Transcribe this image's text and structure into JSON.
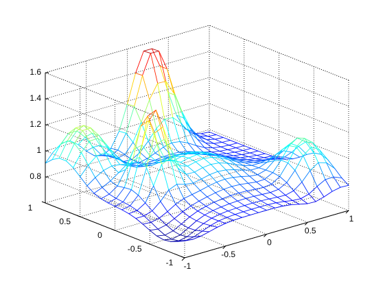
{
  "chart_data": {
    "type": "surface",
    "title": "",
    "xlabel": "",
    "ylabel": "",
    "zlabel": "",
    "colormap": "jet",
    "render": "mesh",
    "grid": true,
    "box": "partial",
    "xlim": [
      -1,
      1
    ],
    "ylim": [
      -1,
      1
    ],
    "zlim": [
      0.6,
      1.6
    ],
    "x_ticks": [
      -1,
      -0.5,
      0,
      0.5,
      1
    ],
    "y_ticks": [
      -1,
      -0.5,
      0,
      0.5,
      1
    ],
    "z_ticks": [
      0.8,
      1,
      1.2,
      1.4,
      1.6
    ],
    "x_tick_labels": [
      "-1",
      "-0.5",
      "0",
      "0.5",
      "1"
    ],
    "y_tick_labels": [
      "-1",
      "-0.5",
      "0",
      "0.5",
      "1"
    ],
    "z_tick_labels": [
      "0.8",
      "1",
      "1.2",
      "1.4",
      "1.6"
    ],
    "grid_points": 21,
    "x": [
      -1,
      -0.9,
      -0.8,
      -0.7,
      -0.6,
      -0.5,
      -0.4,
      -0.3,
      -0.2,
      -0.1,
      0,
      0.1,
      0.2,
      0.3,
      0.4,
      0.5,
      0.6,
      0.7,
      0.8,
      0.9,
      1
    ],
    "y": [
      -1,
      -0.9,
      -0.8,
      -0.7,
      -0.6,
      -0.5,
      -0.4,
      -0.3,
      -0.2,
      -0.1,
      0,
      0.1,
      0.2,
      0.3,
      0.4,
      0.5,
      0.6,
      0.7,
      0.8,
      0.9,
      1
    ],
    "z_range_observed": [
      0.65,
      1.6
    ],
    "features": [
      {
        "x": 0.25,
        "y": 0.95,
        "z": 1.6
      },
      {
        "x": -0.55,
        "y": 0.0,
        "z": 1.45
      },
      {
        "x": -0.7,
        "y": 0.7,
        "z": 1.2
      },
      {
        "x": 0.8,
        "y": -0.6,
        "z": 1.1
      },
      {
        "x": -0.9,
        "y": -0.7,
        "z": 0.75
      },
      {
        "x": 0.7,
        "y": -0.95,
        "z": 0.72
      },
      {
        "x": 0.0,
        "y": 0.0,
        "z": 1.0
      }
    ]
  }
}
